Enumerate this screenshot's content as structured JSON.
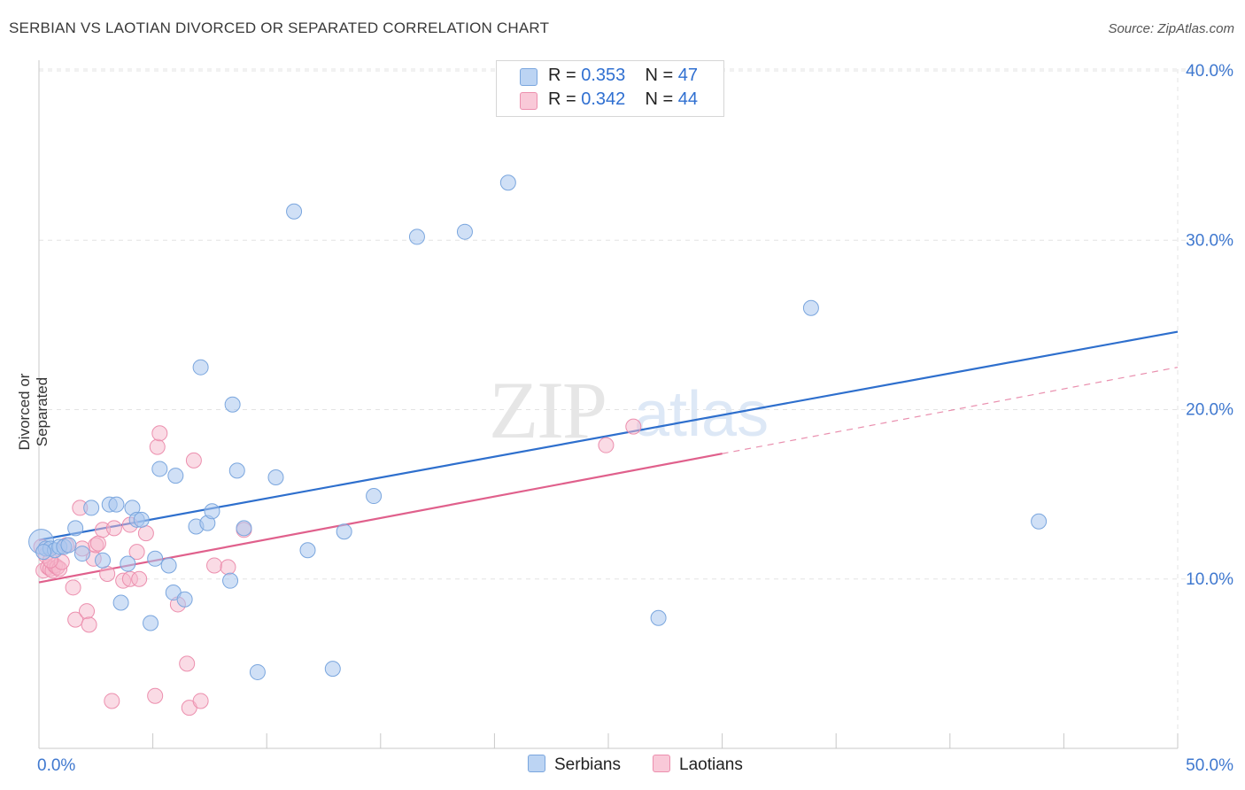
{
  "title": "SERBIAN VS LAOTIAN DIVORCED OR SEPARATED CORRELATION CHART",
  "source": "Source: ZipAtlas.com",
  "watermark": {
    "zip": "ZIP",
    "atlas": "atlas"
  },
  "colors": {
    "serbians_fill": "#a9c7ee",
    "serbians_stroke": "#7aa6de",
    "serbians_line": "#2e6fcd",
    "laotians_fill": "#f6b7cb",
    "laotians_stroke": "#ec8fae",
    "laotians_line": "#e0608c",
    "axis_label": "#3f78cf"
  },
  "legend": {
    "rows": [
      {
        "r_label": "R = ",
        "r_value": "0.353",
        "n_label": "N = ",
        "n_value": "47"
      },
      {
        "r_label": "R = ",
        "r_value": "0.342",
        "n_label": "N = ",
        "n_value": "44"
      }
    ],
    "series_names": [
      "Serbians",
      "Laotians"
    ]
  },
  "chart_data": {
    "type": "scatter",
    "title": "SERBIAN VS LAOTIAN DIVORCED OR SEPARATED CORRELATION CHART",
    "xlabel": "",
    "ylabel": "Divorced or Separated",
    "xlim": [
      0,
      50
    ],
    "ylim": [
      0,
      42
    ],
    "x_tick_labels": [
      "0.0%",
      "50.0%"
    ],
    "y_ticks": [
      10,
      20,
      30,
      40
    ],
    "y_tick_labels": [
      "10.0%",
      "20.0%",
      "30.0%",
      "40.0%"
    ],
    "grid": true,
    "series": [
      {
        "name": "Serbians",
        "r": 0.353,
        "n": 47,
        "trend": {
          "x0": 0,
          "y0": 12.3,
          "x1": 50,
          "y1": 24.6
        },
        "points": [
          [
            0.1,
            12.2
          ],
          [
            0.3,
            11.8
          ],
          [
            0.5,
            11.8
          ],
          [
            0.7,
            11.7
          ],
          [
            0.9,
            11.9
          ],
          [
            1.1,
            11.9
          ],
          [
            1.3,
            12.0
          ],
          [
            1.6,
            13.0
          ],
          [
            1.9,
            11.5
          ],
          [
            2.3,
            14.2
          ],
          [
            2.8,
            11.1
          ],
          [
            3.1,
            14.4
          ],
          [
            3.4,
            14.4
          ],
          [
            3.6,
            8.6
          ],
          [
            3.9,
            10.9
          ],
          [
            4.1,
            14.2
          ],
          [
            4.3,
            13.5
          ],
          [
            4.5,
            13.5
          ],
          [
            4.9,
            7.4
          ],
          [
            5.1,
            11.2
          ],
          [
            5.3,
            16.5
          ],
          [
            5.7,
            10.8
          ],
          [
            5.9,
            9.2
          ],
          [
            6.0,
            16.1
          ],
          [
            6.4,
            8.8
          ],
          [
            6.9,
            13.1
          ],
          [
            7.1,
            22.5
          ],
          [
            7.4,
            13.3
          ],
          [
            7.6,
            14.0
          ],
          [
            8.4,
            9.9
          ],
          [
            8.5,
            20.3
          ],
          [
            8.7,
            16.4
          ],
          [
            9.0,
            13.0
          ],
          [
            9.6,
            4.5
          ],
          [
            10.4,
            16.0
          ],
          [
            11.2,
            31.7
          ],
          [
            11.8,
            11.7
          ],
          [
            12.9,
            4.7
          ],
          [
            13.4,
            12.8
          ],
          [
            14.7,
            14.9
          ],
          [
            16.6,
            30.2
          ],
          [
            18.7,
            30.5
          ],
          [
            20.6,
            33.4
          ],
          [
            27.2,
            7.7
          ],
          [
            33.9,
            26.0
          ],
          [
            43.9,
            13.4
          ],
          [
            0.2,
            11.6
          ]
        ]
      },
      {
        "name": "Laotians",
        "r": 0.342,
        "n": 44,
        "trend": {
          "x0": 0,
          "y0": 9.8,
          "x1": 30,
          "y1": 17.4
        },
        "trend_dashed": {
          "x0": 30,
          "y0": 17.4,
          "x1": 50,
          "y1": 22.5
        },
        "points": [
          [
            0.1,
            11.9
          ],
          [
            0.2,
            10.5
          ],
          [
            0.3,
            11.4
          ],
          [
            0.4,
            10.7
          ],
          [
            0.5,
            10.6
          ],
          [
            0.6,
            10.5
          ],
          [
            0.7,
            10.8
          ],
          [
            0.8,
            10.7
          ],
          [
            0.9,
            10.6
          ],
          [
            1.0,
            11.0
          ],
          [
            1.2,
            12.0
          ],
          [
            1.5,
            9.5
          ],
          [
            1.6,
            7.6
          ],
          [
            1.8,
            14.2
          ],
          [
            2.1,
            8.1
          ],
          [
            2.2,
            7.3
          ],
          [
            2.4,
            11.2
          ],
          [
            2.5,
            12.0
          ],
          [
            2.6,
            12.1
          ],
          [
            2.8,
            12.9
          ],
          [
            3.0,
            10.3
          ],
          [
            3.2,
            2.8
          ],
          [
            3.3,
            13.0
          ],
          [
            3.7,
            9.9
          ],
          [
            4.0,
            13.2
          ],
          [
            4.0,
            10.0
          ],
          [
            4.3,
            11.6
          ],
          [
            4.4,
            10.0
          ],
          [
            4.7,
            12.7
          ],
          [
            5.1,
            3.1
          ],
          [
            5.2,
            17.8
          ],
          [
            5.3,
            18.6
          ],
          [
            6.1,
            8.5
          ],
          [
            6.5,
            5.0
          ],
          [
            6.6,
            2.4
          ],
          [
            6.8,
            17.0
          ],
          [
            7.1,
            2.8
          ],
          [
            7.7,
            10.8
          ],
          [
            8.3,
            10.7
          ],
          [
            9.0,
            12.9
          ],
          [
            24.9,
            17.9
          ],
          [
            26.1,
            19.0
          ],
          [
            0.5,
            11.1
          ],
          [
            1.9,
            11.8
          ]
        ]
      }
    ]
  }
}
